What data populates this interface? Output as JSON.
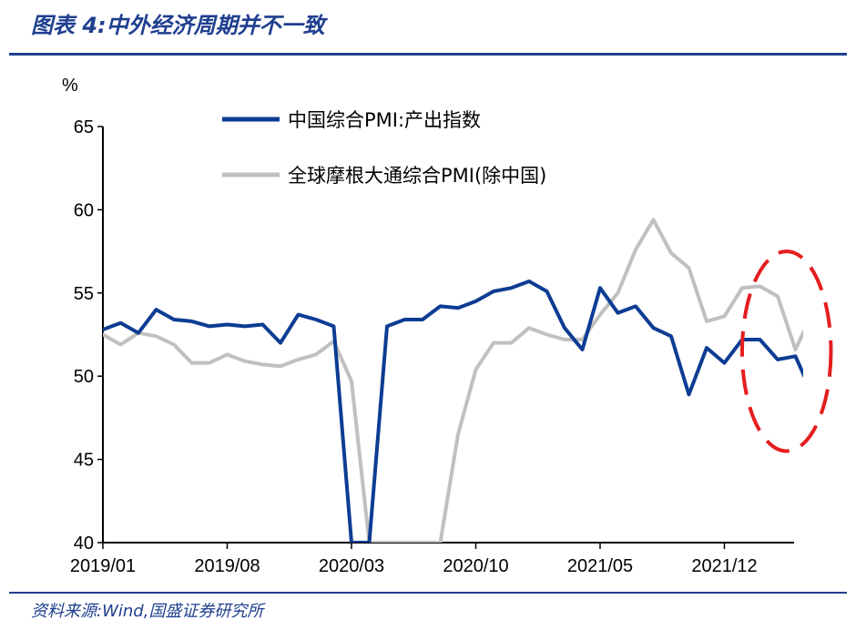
{
  "header": {
    "title": "图表 4:中外经济周期并不一致"
  },
  "footer": {
    "source": "资料来源:Wind,国盛证券研究所"
  },
  "colors": {
    "accent": "#1f3f8f",
    "china": "#0d3c93",
    "global": "#c0c0c0",
    "highlight": "#e41e1e"
  },
  "chart_data": {
    "type": "line",
    "ylabel": "%",
    "ylim": [
      40,
      65
    ],
    "yticks": [
      40,
      45,
      50,
      55,
      60,
      65
    ],
    "xlim": [
      "2019/01",
      "2022/05"
    ],
    "xticks": [
      "2019/01",
      "2019/08",
      "2020/03",
      "2020/10",
      "2021/05",
      "2021/12"
    ],
    "legend_position": "top-right",
    "series": [
      {
        "name": "中国综合PMI:产出指数",
        "color": "#0d3c93",
        "points": [
          [
            "2019/01",
            52.8
          ],
          [
            "2019/02",
            53.2
          ],
          [
            "2019/03",
            52.6
          ],
          [
            "2019/04",
            54.0
          ],
          [
            "2019/05",
            53.4
          ],
          [
            "2019/06",
            53.3
          ],
          [
            "2019/07",
            53.0
          ],
          [
            "2019/08",
            53.1
          ],
          [
            "2019/09",
            53.0
          ],
          [
            "2019/10",
            53.1
          ],
          [
            "2019/11",
            52.0
          ],
          [
            "2019/12",
            53.7
          ],
          [
            "2020/01",
            53.4
          ],
          [
            "2020/02",
            53.0
          ],
          [
            "2020/03",
            40.0
          ],
          [
            "2020/04",
            40.0
          ],
          [
            "2020/05",
            53.0
          ],
          [
            "2020/06",
            53.4
          ],
          [
            "2020/07",
            53.4
          ],
          [
            "2020/08",
            54.2
          ],
          [
            "2020/09",
            54.1
          ],
          [
            "2020/10",
            54.5
          ],
          [
            "2020/11",
            55.1
          ],
          [
            "2020/12",
            55.3
          ],
          [
            "2021/01",
            55.7
          ],
          [
            "2021/02",
            55.1
          ],
          [
            "2021/03",
            52.9
          ],
          [
            "2021/04",
            51.6
          ],
          [
            "2021/05",
            55.3
          ],
          [
            "2021/06",
            53.8
          ],
          [
            "2021/07",
            54.2
          ],
          [
            "2021/08",
            52.9
          ],
          [
            "2021/09",
            52.4
          ],
          [
            "2021/10",
            48.9
          ],
          [
            "2021/11",
            51.7
          ],
          [
            "2021/12",
            50.8
          ],
          [
            "2022/01",
            52.2
          ],
          [
            "2022/02",
            52.2
          ],
          [
            "2022/03",
            51.0
          ],
          [
            "2022/04",
            51.2
          ],
          [
            "2022/05",
            48.8
          ]
        ]
      },
      {
        "name": "全球摩根大通综合PMI(除中国)",
        "color": "#c0c0c0",
        "points": [
          [
            "2019/01",
            52.5
          ],
          [
            "2019/02",
            51.9
          ],
          [
            "2019/03",
            52.6
          ],
          [
            "2019/04",
            52.4
          ],
          [
            "2019/05",
            51.9
          ],
          [
            "2019/06",
            50.8
          ],
          [
            "2019/07",
            50.8
          ],
          [
            "2019/08",
            51.3
          ],
          [
            "2019/09",
            50.9
          ],
          [
            "2019/10",
            50.7
          ],
          [
            "2019/11",
            50.6
          ],
          [
            "2019/12",
            51.0
          ],
          [
            "2020/01",
            51.3
          ],
          [
            "2020/02",
            52.1
          ],
          [
            "2020/03",
            49.7
          ],
          [
            "2020/04",
            40.0
          ],
          [
            "2020/05",
            40.0
          ],
          [
            "2020/06",
            40.0
          ],
          [
            "2020/07",
            40.0
          ],
          [
            "2020/08",
            40.0
          ],
          [
            "2020/09",
            46.5
          ],
          [
            "2020/10",
            50.4
          ],
          [
            "2020/11",
            52.0
          ],
          [
            "2020/12",
            52.0
          ],
          [
            "2021/01",
            52.9
          ],
          [
            "2021/02",
            52.5
          ],
          [
            "2021/03",
            52.2
          ],
          [
            "2021/04",
            52.2
          ],
          [
            "2021/05",
            53.7
          ],
          [
            "2021/06",
            55.0
          ],
          [
            "2021/07",
            57.6
          ],
          [
            "2021/08",
            59.4
          ],
          [
            "2021/09",
            57.4
          ],
          [
            "2021/10",
            56.5
          ],
          [
            "2021/11",
            53.3
          ],
          [
            "2021/12",
            53.6
          ],
          [
            "2022/01",
            55.3
          ],
          [
            "2022/02",
            55.4
          ],
          [
            "2022/03",
            54.8
          ],
          [
            "2022/04",
            51.6
          ],
          [
            "2022/05",
            53.9
          ],
          [
            "2022/06",
            53.5
          ]
        ]
      }
    ],
    "annotations": [
      {
        "type": "dashed-ellipse",
        "color": "#e41e1e",
        "x_range": [
          "2022/01",
          "2022/06"
        ],
        "y_range": [
          45.5,
          57.5
        ]
      }
    ]
  }
}
